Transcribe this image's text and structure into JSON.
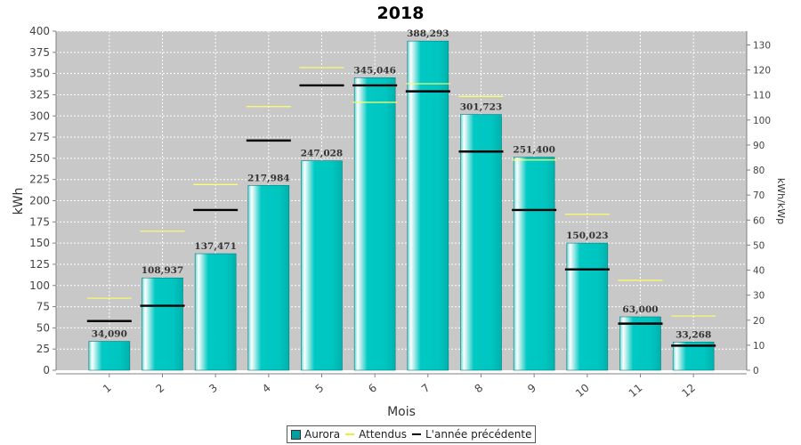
{
  "chart_data": {
    "type": "bar",
    "title": "2018",
    "xlabel": "Mois",
    "ylabel": "kWh",
    "y2label": "kWh/kWp",
    "categories": [
      "1",
      "2",
      "3",
      "4",
      "5",
      "6",
      "7",
      "8",
      "9",
      "10",
      "11",
      "12"
    ],
    "ylim": [
      0,
      400
    ],
    "y2lim": [
      0,
      130
    ],
    "yticks": [
      0,
      25,
      50,
      75,
      100,
      125,
      150,
      175,
      200,
      225,
      250,
      275,
      300,
      325,
      350,
      375,
      400
    ],
    "y2ticks": [
      0,
      10,
      20,
      30,
      40,
      50,
      60,
      70,
      80,
      90,
      100,
      110,
      120,
      130
    ],
    "grid": true,
    "legend_position": "bottom",
    "series": [
      {
        "name": "Aurora",
        "type": "bar",
        "color": "#00b5b0",
        "values": [
          34.09,
          108.937,
          137.471,
          217.984,
          247.028,
          345.046,
          388.293,
          301.723,
          251.4,
          150.023,
          63.0,
          33.268
        ],
        "labels": [
          "34,090",
          "108,937",
          "137,471",
          "217,984",
          "247,028",
          "345,046",
          "388,293",
          "301,723",
          "251,400",
          "150,023",
          "63,000",
          "33,268"
        ]
      },
      {
        "name": "Attendus",
        "type": "marker",
        "color": "#ffff66",
        "values": [
          85,
          164,
          219,
          311,
          357,
          316,
          338,
          323,
          248,
          184,
          106,
          64
        ]
      },
      {
        "name": "L'année précédente",
        "type": "marker",
        "color": "#000000",
        "values": [
          58,
          76,
          189,
          271,
          336,
          336,
          329,
          258,
          189,
          119,
          55,
          29
        ]
      }
    ]
  }
}
